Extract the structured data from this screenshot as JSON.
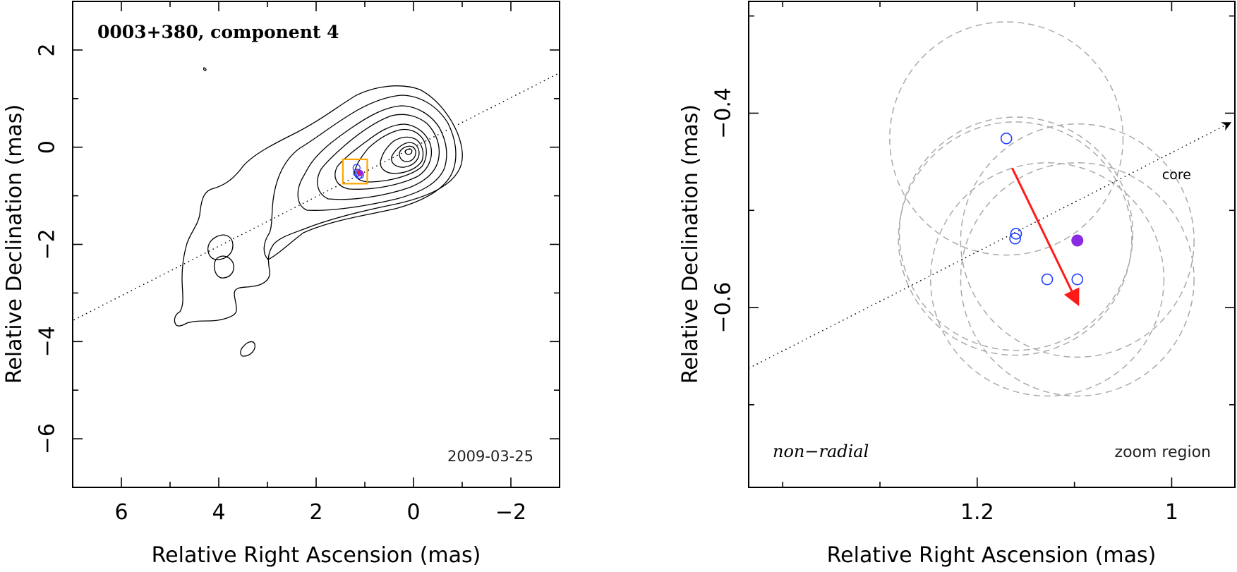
{
  "chart_data": [
    {
      "type": "contour",
      "title": "0003+380, component 4",
      "epoch": "2009-03-25",
      "xlabel": "Relative Right Ascension (mas)",
      "ylabel": "Relative Declination (mas)",
      "xlim": [
        7,
        -3
      ],
      "ylim": [
        -7,
        3
      ],
      "xticks": [
        6,
        4,
        2,
        0,
        -2
      ],
      "yticks": [
        2,
        0,
        -2,
        -4,
        -6
      ],
      "xtick_labels": [
        "6",
        "4",
        "2",
        "0",
        "−2"
      ],
      "ytick_labels": [
        "2",
        "0",
        "−2",
        "−4",
        "−6"
      ],
      "core_position": [
        0,
        0
      ],
      "ridge_line_angle_deg": 117,
      "zoom_box": {
        "x_range": [
          0.95,
          1.45
        ],
        "y_range": [
          -0.75,
          -0.25
        ]
      },
      "component_position": [
        1.09,
        -0.55
      ],
      "contour_levels_count": 11
    },
    {
      "type": "scatter",
      "xlabel": "Relative Right Ascension (mas)",
      "ylabel": "Relative Declination (mas)",
      "xlim": [
        1.435,
        0.935
      ],
      "ylim": [
        -0.785,
        -0.285
      ],
      "xticks": [
        1.2,
        1.0
      ],
      "yticks": [
        -0.4,
        -0.6
      ],
      "xtick_labels": [
        "1.2",
        "1"
      ],
      "ytick_labels": [
        "−0.4",
        "−0.6"
      ],
      "core_label": "core",
      "motion_label": "non−radial",
      "region_label": "zoom region",
      "open_positions": [
        {
          "x": 1.17,
          "y": -0.426
        },
        {
          "x": 1.16,
          "y": -0.524
        },
        {
          "x": 1.161,
          "y": -0.529
        },
        {
          "x": 1.128,
          "y": -0.571
        },
        {
          "x": 1.097,
          "y": -0.571
        }
      ],
      "filled_position": {
        "x": 1.097,
        "y": -0.531
      },
      "error_circle_radius_mas": 0.12,
      "motion_vector": {
        "from": [
          1.164,
          -0.4565
        ],
        "to": [
          1.096,
          -0.597
        ]
      },
      "ridge_line": {
        "from": [
          1.435,
          -0.6625
        ],
        "to": [
          0.935,
          -0.4075
        ]
      },
      "colors": {
        "open_marker": "#1f3fff",
        "filled_marker": "#8a2be2",
        "vector": "#ff1a1a",
        "error_circle": "#aaaaaa",
        "zoom_box": "#ffa500"
      }
    }
  ]
}
